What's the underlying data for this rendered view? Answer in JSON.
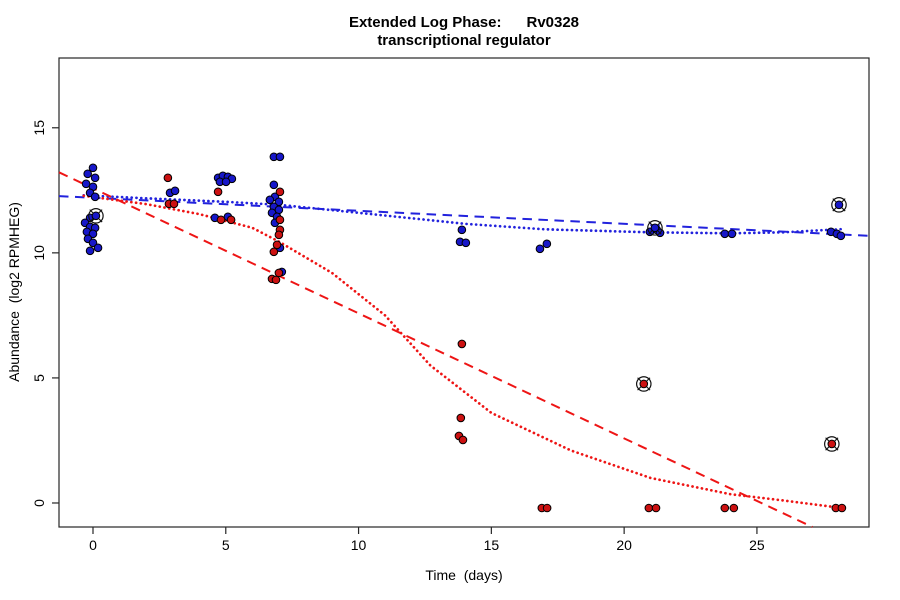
{
  "title": {
    "line1": "Extended Log Phase:      Rv0328",
    "line2": "transcriptional regulator"
  },
  "axes": {
    "xlabel": "Time  (days)",
    "ylabel": "Abundance  (log2 RPMHEG)",
    "x_ticks": [
      0,
      5,
      10,
      15,
      20,
      25
    ],
    "y_ticks": [
      0,
      5,
      10,
      15
    ]
  },
  "chart_data": {
    "type": "scatter",
    "title": "Extended Log Phase: Rv0328 transcriptional regulator",
    "xlabel": "Time (days)",
    "ylabel": "Abundance (log2 RPMHEG)",
    "xlim": [
      -1.28,
      29.22
    ],
    "ylim": [
      -0.96,
      17.79
    ],
    "grid": false,
    "legend": "none",
    "colors": {
      "blue_point": "#1717c9",
      "red_point": "#cc1111",
      "blue_line": "#2222dd",
      "red_line": "#ee1515",
      "outlier_ring": "#111111"
    },
    "series": [
      {
        "name": "blue-points",
        "color": "#1717c9",
        "marker": "dot",
        "points": [
          [
            0.0,
            13.4
          ],
          [
            -0.2,
            13.16
          ],
          [
            0.08,
            13.0
          ],
          [
            -0.26,
            12.76
          ],
          [
            0.0,
            12.64
          ],
          [
            -0.11,
            12.4
          ],
          [
            0.08,
            12.24
          ],
          [
            -0.11,
            11.4
          ],
          [
            -0.3,
            11.2
          ],
          [
            -0.11,
            11.04
          ],
          [
            0.08,
            11.0
          ],
          [
            -0.23,
            10.84
          ],
          [
            0.0,
            10.76
          ],
          [
            -0.19,
            10.56
          ],
          [
            0.0,
            10.4
          ],
          [
            0.19,
            10.2
          ],
          [
            -0.11,
            10.08
          ],
          [
            2.9,
            12.4
          ],
          [
            3.09,
            12.48
          ],
          [
            4.71,
            13.0
          ],
          [
            4.89,
            13.08
          ],
          [
            5.08,
            13.04
          ],
          [
            5.23,
            12.96
          ],
          [
            4.78,
            12.84
          ],
          [
            5.01,
            12.84
          ],
          [
            4.59,
            11.4
          ],
          [
            5.08,
            11.44
          ],
          [
            6.81,
            13.84
          ],
          [
            7.04,
            13.84
          ],
          [
            6.81,
            12.72
          ],
          [
            6.85,
            12.24
          ],
          [
            6.66,
            12.12
          ],
          [
            7.0,
            12.04
          ],
          [
            6.81,
            11.84
          ],
          [
            7.0,
            11.72
          ],
          [
            6.74,
            11.6
          ],
          [
            6.93,
            11.44
          ],
          [
            6.85,
            11.2
          ],
          [
            7.04,
            10.2
          ],
          [
            7.11,
            9.24
          ],
          [
            13.89,
            10.92
          ],
          [
            13.82,
            10.44
          ],
          [
            14.04,
            10.4
          ],
          [
            16.83,
            10.16
          ],
          [
            17.09,
            10.36
          ],
          [
            20.97,
            10.84
          ],
          [
            21.23,
            10.92
          ],
          [
            21.35,
            10.8
          ],
          [
            23.79,
            10.76
          ],
          [
            24.06,
            10.76
          ],
          [
            27.79,
            10.84
          ],
          [
            28.01,
            10.76
          ],
          [
            28.16,
            10.68
          ]
        ]
      },
      {
        "name": "red-points",
        "color": "#cc1111",
        "marker": "dot",
        "points": [
          [
            2.82,
            13.0
          ],
          [
            2.86,
            11.96
          ],
          [
            3.05,
            11.96
          ],
          [
            4.71,
            12.44
          ],
          [
            4.82,
            11.32
          ],
          [
            5.2,
            11.32
          ],
          [
            7.04,
            12.44
          ],
          [
            7.04,
            11.32
          ],
          [
            7.04,
            10.92
          ],
          [
            7.0,
            10.72
          ],
          [
            6.93,
            10.32
          ],
          [
            6.81,
            10.04
          ],
          [
            7.0,
            9.2
          ],
          [
            6.74,
            8.96
          ],
          [
            6.89,
            8.92
          ],
          [
            13.89,
            6.36
          ],
          [
            13.85,
            3.4
          ],
          [
            13.78,
            2.68
          ],
          [
            13.93,
            2.52
          ],
          [
            16.9,
            -0.2
          ],
          [
            17.1,
            -0.2
          ],
          [
            20.93,
            -0.2
          ],
          [
            21.2,
            -0.2
          ],
          [
            23.79,
            -0.2
          ],
          [
            24.13,
            -0.2
          ],
          [
            27.97,
            -0.2
          ],
          [
            28.2,
            -0.2
          ]
        ]
      },
      {
        "name": "blue-outlier-points",
        "color": "#1717c9",
        "marker": "circle-cross",
        "points": [
          [
            0.11,
            11.48
          ],
          [
            21.16,
            11.0
          ],
          [
            28.09,
            11.92
          ]
        ]
      },
      {
        "name": "red-outlier-points",
        "color": "#cc1111",
        "marker": "circle-cross",
        "points": [
          [
            20.74,
            4.76
          ],
          [
            27.82,
            2.36
          ]
        ]
      }
    ],
    "lines": [
      {
        "name": "blue-linear-fit",
        "color": "#2222dd",
        "style": "dashed",
        "points": [
          [
            -1.28,
            12.27
          ],
          [
            29.22,
            10.68
          ]
        ]
      },
      {
        "name": "blue-loess-fit",
        "color": "#2222dd",
        "style": "dotted",
        "points": [
          [
            -0.35,
            12.3
          ],
          [
            2,
            12.18
          ],
          [
            5,
            12.04
          ],
          [
            7,
            11.92
          ],
          [
            10,
            11.6
          ],
          [
            14,
            11.16
          ],
          [
            17,
            10.94
          ],
          [
            21,
            10.82
          ],
          [
            24,
            10.78
          ],
          [
            26,
            10.82
          ],
          [
            28.2,
            10.95
          ]
        ]
      },
      {
        "name": "red-linear-fit",
        "color": "#ee1515",
        "style": "dashed",
        "points": [
          [
            -1.28,
            13.22
          ],
          [
            27.09,
            -0.96
          ]
        ]
      },
      {
        "name": "red-loess-fit",
        "color": "#ee1515",
        "style": "dotted",
        "points": [
          [
            -0.35,
            12.28
          ],
          [
            2,
            11.95
          ],
          [
            4,
            11.55
          ],
          [
            6,
            11.0
          ],
          [
            7,
            10.45
          ],
          [
            9,
            9.2
          ],
          [
            11,
            7.5
          ],
          [
            12.7,
            5.5
          ],
          [
            15,
            3.6
          ],
          [
            18,
            2.1
          ],
          [
            21,
            1.0
          ],
          [
            24,
            0.35
          ],
          [
            26,
            0.1
          ],
          [
            28.2,
            -0.2
          ]
        ]
      }
    ]
  }
}
